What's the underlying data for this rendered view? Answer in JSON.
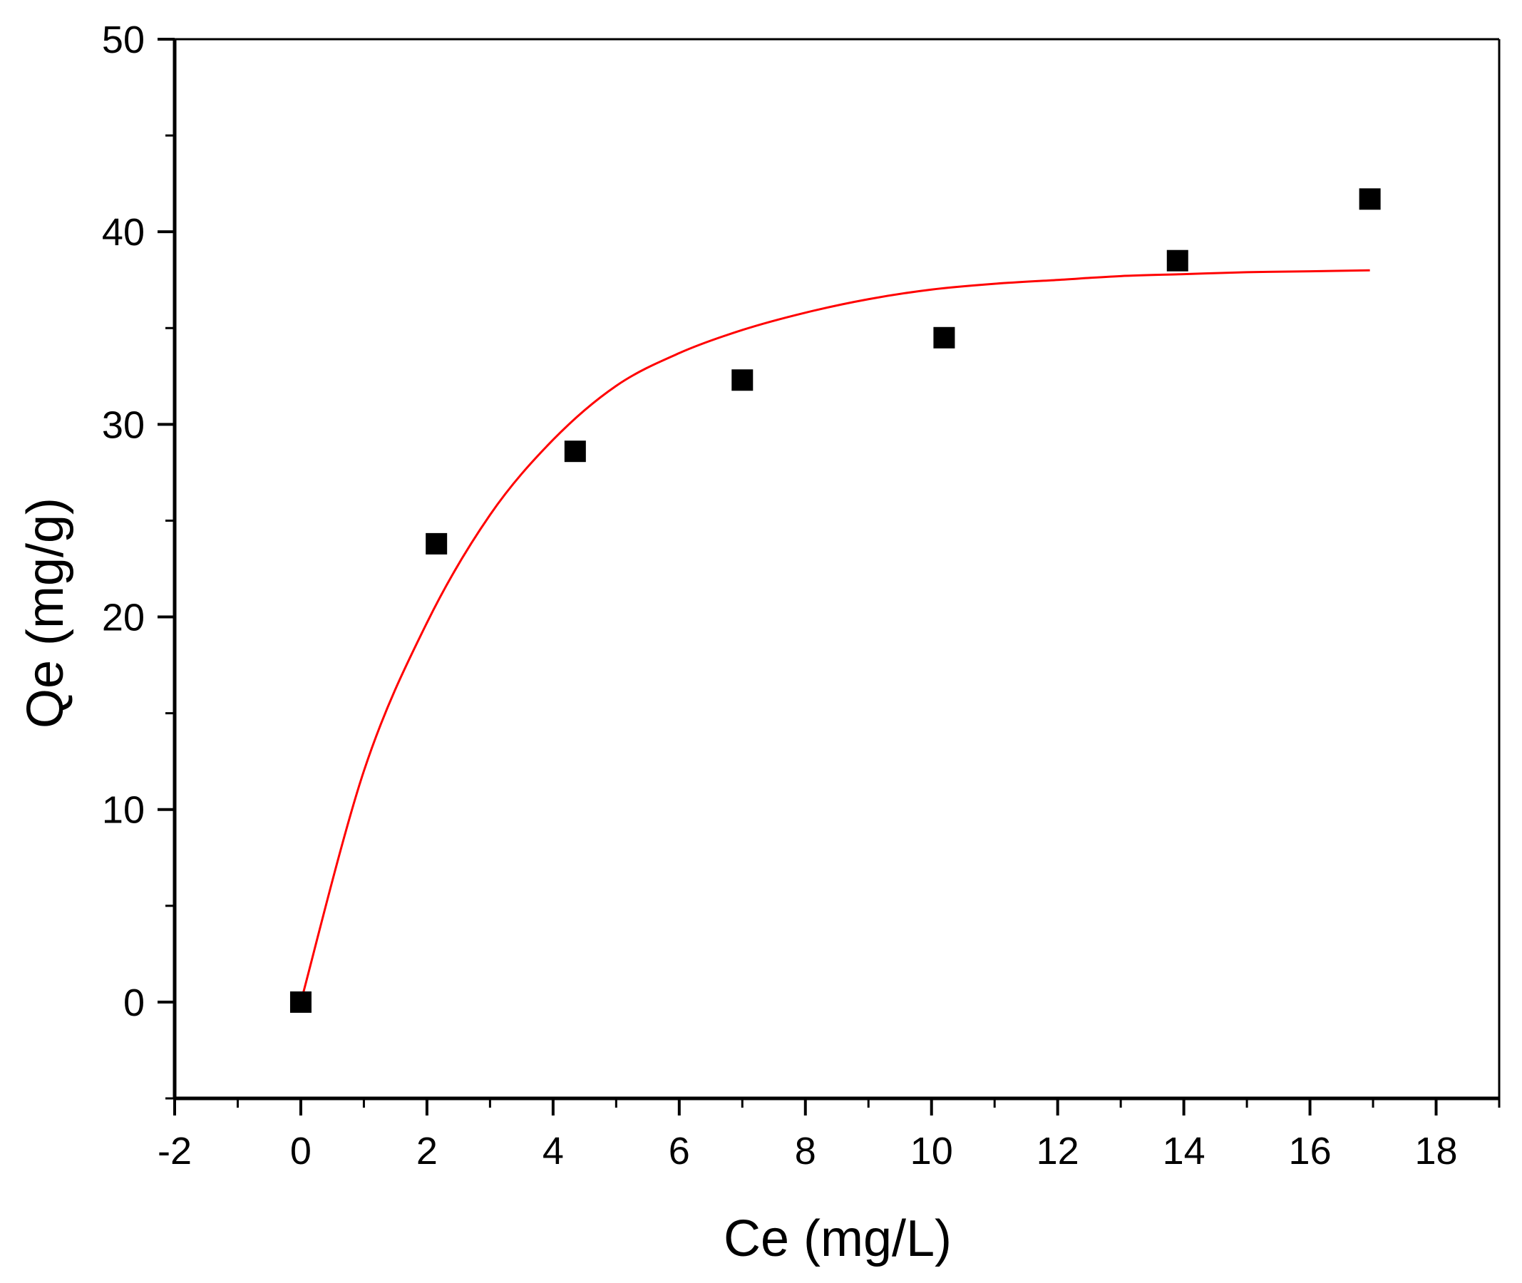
{
  "chart_data": {
    "type": "scatter",
    "title": "",
    "xlabel": "Ce (mg/L)",
    "ylabel": "Qe (mg/g)",
    "xlim": [
      -2,
      19
    ],
    "ylim": [
      -5,
      50
    ],
    "xticks": [
      -2,
      0,
      2,
      4,
      6,
      8,
      10,
      12,
      14,
      16,
      18
    ],
    "yticks": [
      0,
      10,
      20,
      30,
      40,
      50
    ],
    "x_minor_step": 1,
    "y_minor_step": 5,
    "grid": false,
    "legend": "none",
    "series": [
      {
        "kind": "points",
        "marker": "square",
        "color": "#000000",
        "points": [
          {
            "x": 0,
            "y": 0
          },
          {
            "x": 2.15,
            "y": 23.8
          },
          {
            "x": 4.35,
            "y": 28.6
          },
          {
            "x": 7.0,
            "y": 32.3
          },
          {
            "x": 10.2,
            "y": 34.5
          },
          {
            "x": 13.9,
            "y": 38.5
          },
          {
            "x": 16.95,
            "y": 41.7
          }
        ]
      },
      {
        "kind": "fit-line",
        "color": "#ff0000",
        "x_range": [
          0,
          16.95
        ],
        "points": [
          {
            "x": 0,
            "y": 0
          },
          {
            "x": 1,
            "y": 12.0
          },
          {
            "x": 2,
            "y": 19.7
          },
          {
            "x": 3,
            "y": 25.3
          },
          {
            "x": 4,
            "y": 29.2
          },
          {
            "x": 5,
            "y": 32.0
          },
          {
            "x": 6,
            "y": 33.7
          },
          {
            "x": 7,
            "y": 34.9
          },
          {
            "x": 8,
            "y": 35.8
          },
          {
            "x": 9,
            "y": 36.5
          },
          {
            "x": 10,
            "y": 37.0
          },
          {
            "x": 11,
            "y": 37.3
          },
          {
            "x": 12,
            "y": 37.5
          },
          {
            "x": 13,
            "y": 37.7
          },
          {
            "x": 14,
            "y": 37.8
          },
          {
            "x": 15,
            "y": 37.9
          },
          {
            "x": 16,
            "y": 37.95
          },
          {
            "x": 16.95,
            "y": 38.0
          }
        ]
      }
    ]
  }
}
